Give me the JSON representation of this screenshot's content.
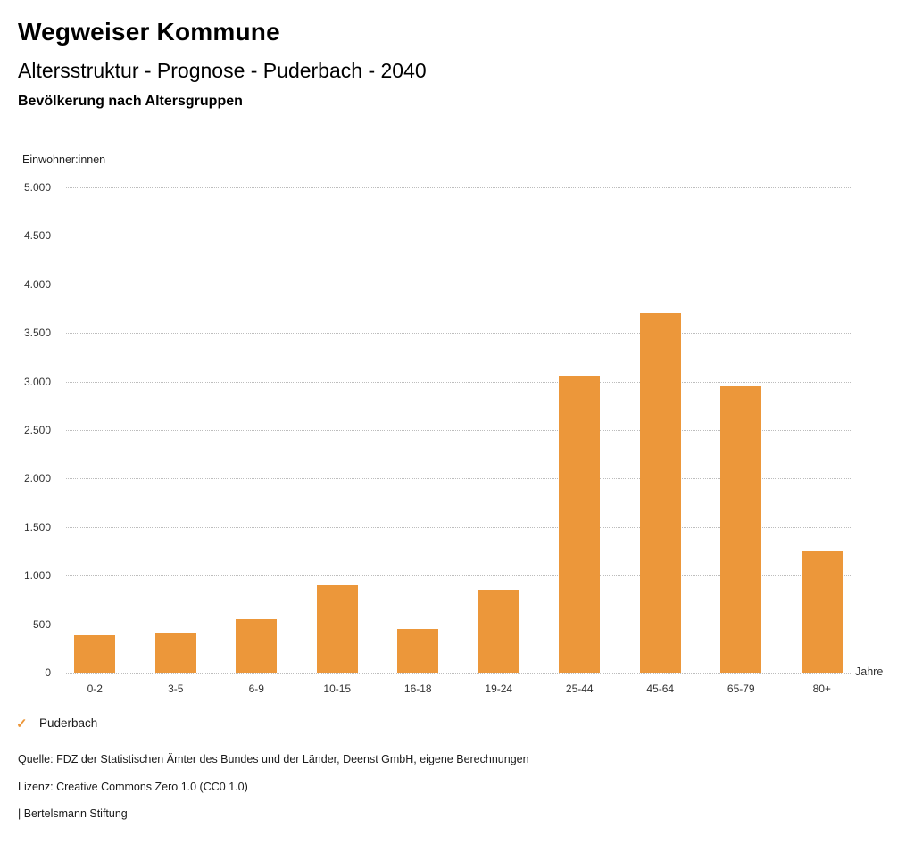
{
  "header": {
    "title": "Wegweiser Kommune",
    "subtitle": "Altersstruktur - Prognose - Puderbach - 2040",
    "chart_heading": "Bevölkerung nach Altersgruppen"
  },
  "axis": {
    "y_title": "Einwohner:innen",
    "x_unit": "Jahre"
  },
  "legend": {
    "check_icon": "✓",
    "label": "Puderbach"
  },
  "footer": {
    "source": "Quelle: FDZ der Statistischen Ämter des Bundes und der Länder, Deenst GmbH, eigene Berechnungen",
    "license": "Lizenz: Creative Commons Zero 1.0 (CC0 1.0)",
    "attribution": "| Bertelsmann Stiftung"
  },
  "colors": {
    "bar": "#EC973A",
    "accent": "#EC973A",
    "gridline": "#BDBDBD"
  },
  "chart_data": {
    "type": "bar",
    "title": "Altersstruktur - Prognose - Puderbach - 2040",
    "subtitle": "Bevölkerung nach Altersgruppen",
    "series_name": "Puderbach",
    "categories": [
      "0-2",
      "3-5",
      "6-9",
      "10-15",
      "16-18",
      "19-24",
      "25-44",
      "45-64",
      "65-79",
      "80+"
    ],
    "values": [
      390,
      400,
      555,
      905,
      450,
      855,
      3050,
      3705,
      2950,
      1250
    ],
    "xlabel": "Jahre",
    "ylabel": "Einwohner:innen",
    "ylim": [
      0,
      5000
    ],
    "ytick_step": 500,
    "ytick_labels": [
      "0",
      "500",
      "1.000",
      "1.500",
      "2.000",
      "2.500",
      "3.000",
      "3.500",
      "4.000",
      "4.500",
      "5.000"
    ],
    "grid": "horizontal-dotted",
    "legend_position": "bottom-left"
  }
}
